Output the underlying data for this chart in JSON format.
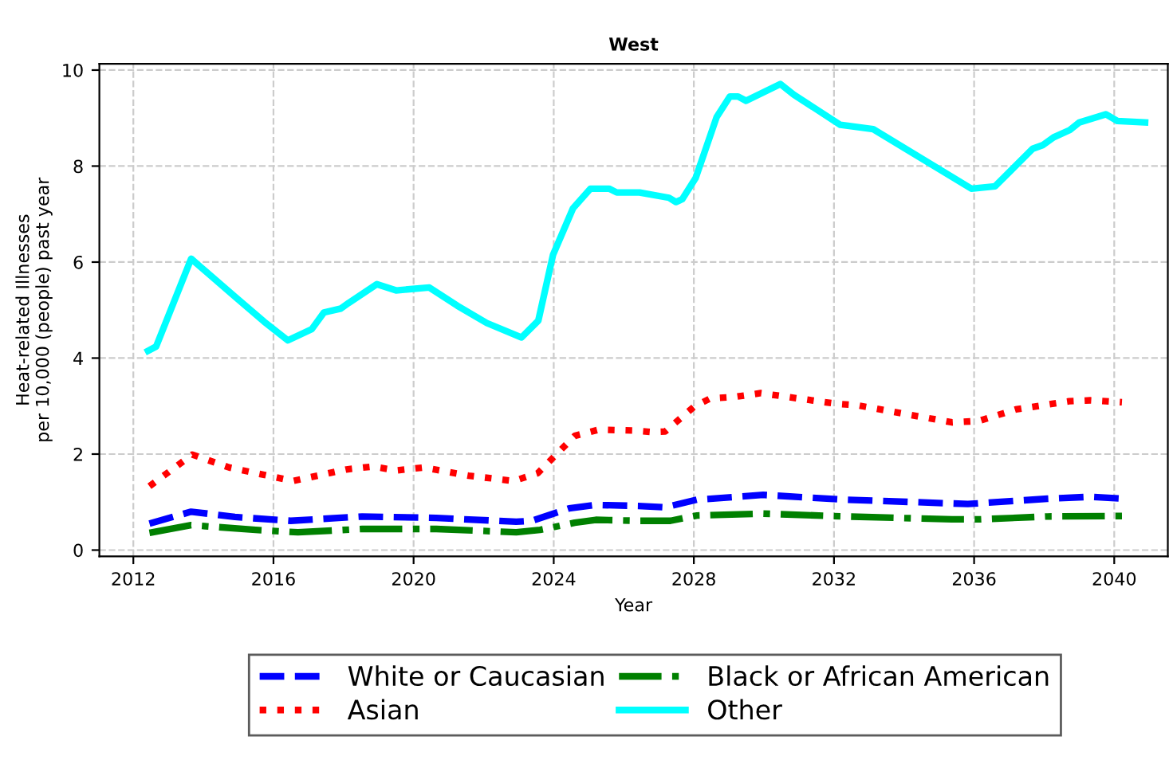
{
  "chart_data": {
    "type": "line",
    "title": "West",
    "xlabel": "Year",
    "ylabel": "Heat-related Illnesses\nper 10,000 (people) past year",
    "xlim": [
      2011.03,
      2041.53
    ],
    "ylim": [
      -0.13,
      10.13
    ],
    "xticks": [
      2012,
      2016,
      2020,
      2024,
      2028,
      2032,
      2036,
      2040
    ],
    "yticks": [
      0,
      2,
      4,
      6,
      8,
      10
    ],
    "grid": true,
    "legend": "bottom",
    "series": [
      {
        "name": "White or Caucasian",
        "color": "#0000ff",
        "line_style": "dashed",
        "x": [
          2012.46,
          2013.65,
          2014.9,
          2016.49,
          2018.53,
          2020.65,
          2022.93,
          2023.38,
          2024.44,
          2025.2,
          2026.41,
          2027.18,
          2028.09,
          2029.98,
          2032.33,
          2035.82,
          2038.09,
          2039.31,
          2040.29
        ],
        "values": [
          0.55,
          0.8,
          0.69,
          0.61,
          0.7,
          0.67,
          0.59,
          0.61,
          0.87,
          0.94,
          0.92,
          0.89,
          1.05,
          1.15,
          1.05,
          0.96,
          1.07,
          1.11,
          1.07
        ]
      },
      {
        "name": "Asian",
        "color": "#ff0000",
        "line_style": "dotted",
        "x": [
          2012.46,
          2013.68,
          2014.74,
          2016.56,
          2018.08,
          2018.83,
          2019.52,
          2020.28,
          2021.57,
          2022.86,
          2023.54,
          2024.07,
          2024.6,
          2025.29,
          2026.27,
          2026.8,
          2027.18,
          2028.01,
          2028.47,
          2029.15,
          2029.91,
          2032.04,
          2032.64,
          2035.37,
          2036.13,
          2037.19,
          2038.71,
          2039.31,
          2040.22
        ],
        "values": [
          1.33,
          1.99,
          1.72,
          1.44,
          1.68,
          1.74,
          1.66,
          1.72,
          1.55,
          1.44,
          1.6,
          1.99,
          2.38,
          2.51,
          2.49,
          2.46,
          2.47,
          2.99,
          3.16,
          3.19,
          3.27,
          3.05,
          3.02,
          2.66,
          2.69,
          2.93,
          3.1,
          3.12,
          3.08
        ]
      },
      {
        "name": "Black or African American",
        "color": "#008000",
        "line_style": "dashdot",
        "x": [
          2012.46,
          2013.65,
          2015.49,
          2016.7,
          2018.53,
          2020.65,
          2022.93,
          2023.61,
          2024.6,
          2025.2,
          2026.41,
          2027.33,
          2028.09,
          2029.98,
          2032.33,
          2035.37,
          2036.13,
          2038.09,
          2040.22
        ],
        "values": [
          0.36,
          0.52,
          0.42,
          0.37,
          0.44,
          0.44,
          0.37,
          0.42,
          0.57,
          0.63,
          0.61,
          0.61,
          0.72,
          0.76,
          0.7,
          0.64,
          0.64,
          0.7,
          0.71
        ]
      },
      {
        "name": "Other",
        "color": "#00ffff",
        "line_style": "solid",
        "x": [
          2012.42,
          2012.65,
          2013.65,
          2014.06,
          2014.9,
          2015.73,
          2016.41,
          2017.09,
          2017.44,
          2017.92,
          2018.15,
          2018.95,
          2019.5,
          2020.45,
          2021.25,
          2022.09,
          2023.08,
          2023.56,
          2023.98,
          2024.55,
          2025.05,
          2025.58,
          2025.8,
          2026.45,
          2027.29,
          2027.49,
          2027.67,
          2028.05,
          2028.65,
          2029.03,
          2029.26,
          2029.49,
          2030.47,
          2030.85,
          2032.18,
          2033.12,
          2035.92,
          2036.6,
          2037.67,
          2037.97,
          2038.27,
          2038.73,
          2039.0,
          2039.76,
          2040.09,
          2040.88
        ],
        "values": [
          4.15,
          4.24,
          6.07,
          5.81,
          5.28,
          4.76,
          4.37,
          4.6,
          4.95,
          5.03,
          5.15,
          5.54,
          5.41,
          5.47,
          5.09,
          4.73,
          4.43,
          4.78,
          6.15,
          7.12,
          7.53,
          7.53,
          7.45,
          7.45,
          7.34,
          7.25,
          7.31,
          7.75,
          9.02,
          9.45,
          9.45,
          9.36,
          9.71,
          9.49,
          8.86,
          8.77,
          7.53,
          7.58,
          8.36,
          8.44,
          8.6,
          8.75,
          8.91,
          9.08,
          8.94,
          8.91
        ]
      }
    ]
  }
}
